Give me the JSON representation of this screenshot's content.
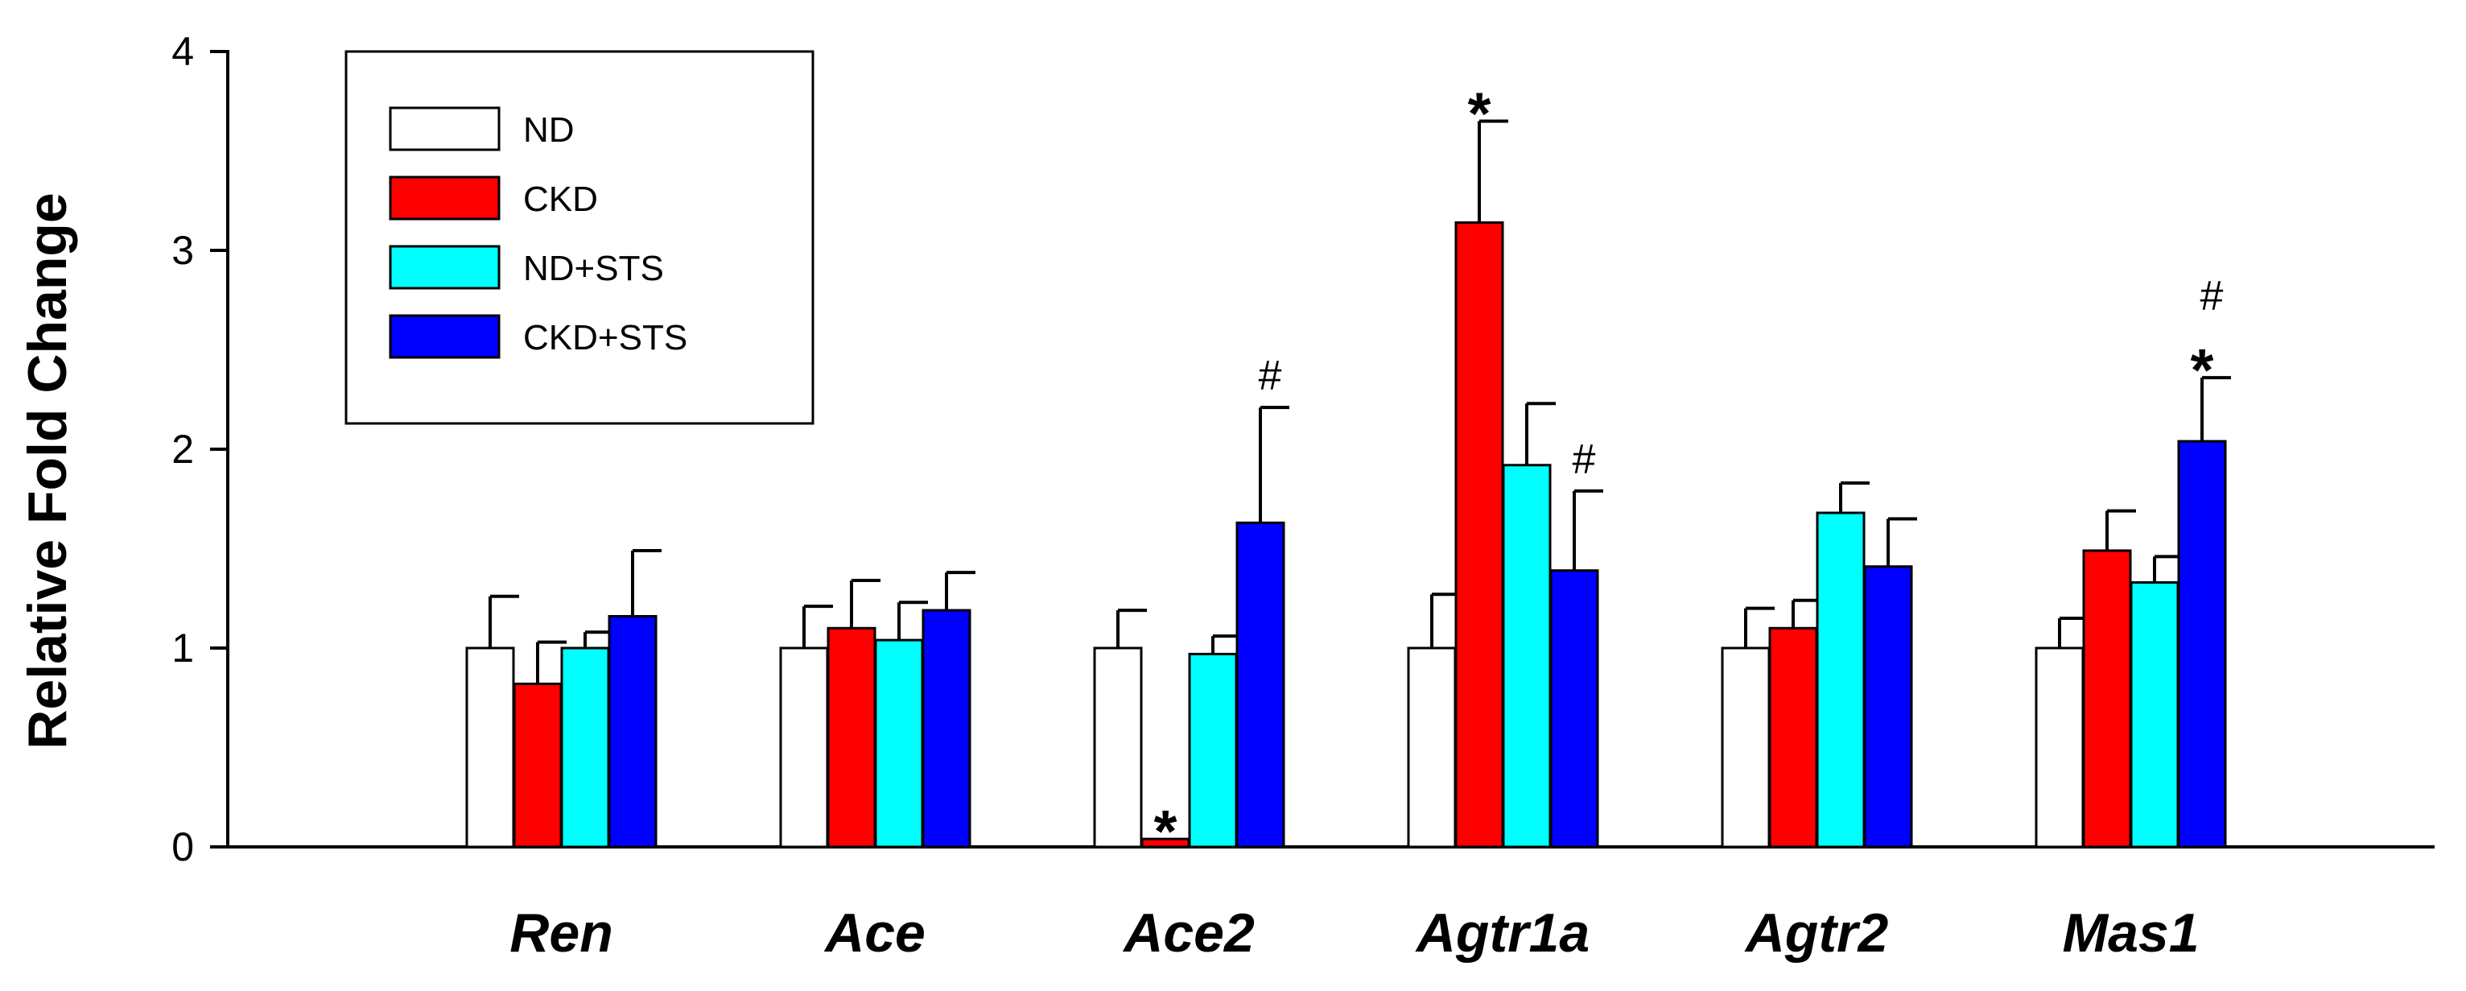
{
  "chart_data": {
    "type": "bar",
    "title": "",
    "xlabel": "",
    "ylabel": "Relative Fold Change",
    "ylim": [
      0,
      4
    ],
    "yticks": [
      "0",
      "1",
      "2",
      "3",
      "4"
    ],
    "grid": false,
    "legend_position": "top-left",
    "categories": [
      "Ren",
      "Ace",
      "Ace2",
      "Agtr1a",
      "Agtr2",
      "Mas1"
    ],
    "series": [
      {
        "name": "ND",
        "color": "#ffffff",
        "values": [
          1.0,
          1.0,
          1.0,
          1.0,
          1.0,
          1.0
        ],
        "errors": [
          0.26,
          0.21,
          0.19,
          0.27,
          0.2,
          0.15
        ]
      },
      {
        "name": "CKD",
        "color": "#ff0000",
        "values": [
          0.82,
          1.1,
          0.04,
          3.14,
          1.1,
          1.49
        ],
        "errors": [
          0.21,
          0.24,
          0.0,
          0.51,
          0.14,
          0.2
        ]
      },
      {
        "name": "ND+STS",
        "color": "#00ffff",
        "values": [
          1.0,
          1.04,
          0.97,
          1.92,
          1.68,
          1.33
        ],
        "errors": [
          0.08,
          0.19,
          0.09,
          0.31,
          0.15,
          0.13
        ]
      },
      {
        "name": "CKD+STS",
        "color": "#0000ff",
        "values": [
          1.16,
          1.19,
          1.63,
          1.39,
          1.41,
          2.04
        ],
        "errors": [
          0.33,
          0.19,
          0.58,
          0.4,
          0.24,
          0.32
        ]
      }
    ],
    "annotations": [
      {
        "category": "Ace2",
        "series": "CKD",
        "marks": [
          "*"
        ]
      },
      {
        "category": "Ace2",
        "series": "CKD+STS",
        "marks": [
          "#"
        ]
      },
      {
        "category": "Agtr1a",
        "series": "CKD",
        "marks": [
          "*"
        ]
      },
      {
        "category": "Agtr1a",
        "series": "CKD+STS",
        "marks": [
          "#"
        ]
      },
      {
        "category": "Mas1",
        "series": "CKD+STS",
        "marks": [
          "*",
          "#"
        ]
      }
    ]
  }
}
